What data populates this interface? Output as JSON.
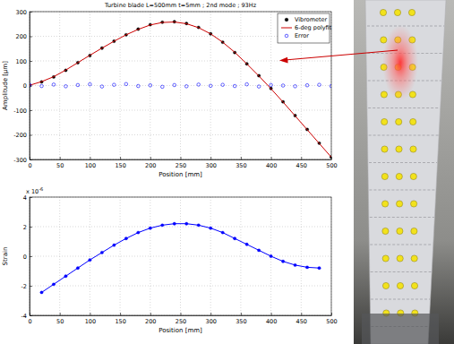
{
  "chart_data": [
    {
      "type": "line",
      "title": "Turbine blade L=500mm t=5mm ; 2nd mode ; 93Hz",
      "x_label": "Position [mm]",
      "y_label": "Amplitude [µm]",
      "x": [
        0,
        20,
        40,
        60,
        80,
        100,
        120,
        140,
        160,
        180,
        200,
        220,
        240,
        260,
        280,
        300,
        320,
        340,
        360,
        380,
        400,
        420,
        440,
        460,
        480,
        500
      ],
      "series": [
        {
          "name": "Vibrometer",
          "type": "scatter",
          "marker": "dot",
          "color": "#000000",
          "values": [
            0,
            15,
            35,
            62,
            93,
            122,
            152,
            180,
            206,
            229,
            247,
            257,
            259,
            252,
            236,
            210,
            176,
            134,
            88,
            40,
            -12,
            -66,
            -122,
            -178,
            -234,
            -290
          ]
        },
        {
          "name": "6-deg polyfit",
          "type": "line",
          "color": "#cc0000",
          "values": [
            1,
            16,
            36,
            63,
            93,
            123,
            152,
            180,
            206,
            228,
            246,
            256,
            258,
            251,
            235,
            210,
            176,
            135,
            88,
            39,
            -13,
            -67,
            -123,
            -179,
            -235,
            -291
          ]
        },
        {
          "name": "Error",
          "type": "scatter",
          "marker": "open-circle",
          "color": "#0000ff",
          "values": [
            3,
            -2,
            4,
            -3,
            2,
            5,
            -4,
            3,
            6,
            -2,
            1,
            -5,
            2,
            -3,
            4,
            -1,
            3,
            -2,
            5,
            -4,
            2,
            0,
            -3,
            1,
            3,
            -2
          ]
        }
      ],
      "xlim": [
        0,
        500
      ],
      "ylim": [
        -300,
        300
      ],
      "xticks": [
        0,
        50,
        100,
        150,
        200,
        250,
        300,
        350,
        400,
        450,
        500
      ],
      "yticks": [
        -300,
        -200,
        -100,
        0,
        100,
        200,
        300
      ],
      "grid": true,
      "legend": "upper right"
    },
    {
      "type": "line",
      "x_label": "Position [mm]",
      "y_label": "Strain",
      "annotations": [
        "x 10",
        "-6"
      ],
      "x": [
        20,
        40,
        60,
        80,
        100,
        120,
        140,
        160,
        180,
        200,
        220,
        240,
        260,
        280,
        300,
        320,
        340,
        360,
        380,
        400,
        420,
        440,
        460,
        480
      ],
      "series": [
        {
          "type": "line",
          "marker": "dot",
          "color": "#0000ff",
          "values": [
            -2.45,
            -1.9,
            -1.35,
            -0.8,
            -0.25,
            0.25,
            0.75,
            1.2,
            1.6,
            1.9,
            2.1,
            2.2,
            2.2,
            2.1,
            1.9,
            1.6,
            1.2,
            0.8,
            0.4,
            0.0,
            -0.35,
            -0.6,
            -0.75,
            -0.8
          ]
        }
      ],
      "xlim": [
        0,
        500
      ],
      "ylim": [
        -4,
        4
      ],
      "xticks": [
        0,
        50,
        100,
        150,
        200,
        250,
        300,
        350,
        400,
        450,
        500
      ],
      "yticks": [
        -4,
        -2,
        0,
        2,
        4
      ],
      "grid": true
    }
  ]
}
